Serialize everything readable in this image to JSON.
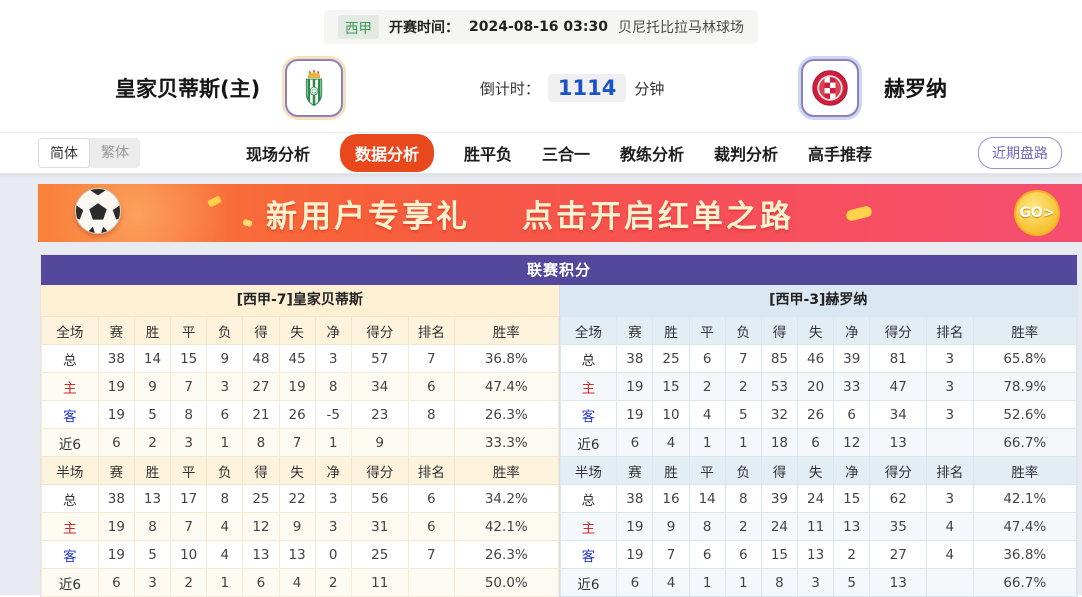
{
  "header": {
    "league": "西甲",
    "kickoff_label": "开赛时间：",
    "kickoff_time": "2024-08-16 03:30",
    "venue": "贝尼托比拉马林球场"
  },
  "teams": {
    "home_name": "皇家贝蒂斯(主)",
    "away_name": "赫罗纳"
  },
  "countdown": {
    "label": "倒计时：",
    "value": "1114",
    "unit": "分钟"
  },
  "lang": {
    "simplified": "简体",
    "traditional": "繁体"
  },
  "nav": {
    "items": [
      "现场分析",
      "数据分析",
      "胜平负",
      "三合一",
      "教练分析",
      "裁判分析",
      "高手推荐"
    ],
    "active_index": 1,
    "recent_button": "近期盘路"
  },
  "banner": {
    "text_left": "新用户专享礼",
    "text_right": "点击开启红单之路",
    "go_label": "GO>"
  },
  "standings": {
    "title": "联赛积分",
    "home": {
      "header": "[西甲-7]皇家贝蒂斯",
      "sections": [
        {
          "columns": [
            "全场",
            "赛",
            "胜",
            "平",
            "负",
            "得",
            "失",
            "净",
            "得分",
            "排名",
            "胜率"
          ],
          "rows": [
            {
              "label": "总",
              "values": [
                "38",
                "14",
                "15",
                "9",
                "48",
                "45",
                "3",
                "57",
                "7",
                "36.8%"
              ]
            },
            {
              "label": "主",
              "values": [
                "19",
                "9",
                "7",
                "3",
                "27",
                "19",
                "8",
                "34",
                "6",
                "47.4%"
              ]
            },
            {
              "label": "客",
              "values": [
                "19",
                "5",
                "8",
                "6",
                "21",
                "26",
                "-5",
                "23",
                "8",
                "26.3%"
              ]
            },
            {
              "label": "近6",
              "values": [
                "6",
                "2",
                "3",
                "1",
                "8",
                "7",
                "1",
                "9",
                "",
                "33.3%"
              ]
            }
          ]
        },
        {
          "columns": [
            "半场",
            "赛",
            "胜",
            "平",
            "负",
            "得",
            "失",
            "净",
            "得分",
            "排名",
            "胜率"
          ],
          "rows": [
            {
              "label": "总",
              "values": [
                "38",
                "13",
                "17",
                "8",
                "25",
                "22",
                "3",
                "56",
                "6",
                "34.2%"
              ]
            },
            {
              "label": "主",
              "values": [
                "19",
                "8",
                "7",
                "4",
                "12",
                "9",
                "3",
                "31",
                "6",
                "42.1%"
              ]
            },
            {
              "label": "客",
              "values": [
                "19",
                "5",
                "10",
                "4",
                "13",
                "13",
                "0",
                "25",
                "7",
                "26.3%"
              ]
            },
            {
              "label": "近6",
              "values": [
                "6",
                "3",
                "2",
                "1",
                "6",
                "4",
                "2",
                "11",
                "",
                "50.0%"
              ]
            }
          ]
        }
      ]
    },
    "away": {
      "header": "[西甲-3]赫罗纳",
      "sections": [
        {
          "columns": [
            "全场",
            "赛",
            "胜",
            "平",
            "负",
            "得",
            "失",
            "净",
            "得分",
            "排名",
            "胜率"
          ],
          "rows": [
            {
              "label": "总",
              "values": [
                "38",
                "25",
                "6",
                "7",
                "85",
                "46",
                "39",
                "81",
                "3",
                "65.8%"
              ]
            },
            {
              "label": "主",
              "values": [
                "19",
                "15",
                "2",
                "2",
                "53",
                "20",
                "33",
                "47",
                "3",
                "78.9%"
              ]
            },
            {
              "label": "客",
              "values": [
                "19",
                "10",
                "4",
                "5",
                "32",
                "26",
                "6",
                "34",
                "3",
                "52.6%"
              ]
            },
            {
              "label": "近6",
              "values": [
                "6",
                "4",
                "1",
                "1",
                "18",
                "6",
                "12",
                "13",
                "",
                "66.7%"
              ]
            }
          ]
        },
        {
          "columns": [
            "半场",
            "赛",
            "胜",
            "平",
            "负",
            "得",
            "失",
            "净",
            "得分",
            "排名",
            "胜率"
          ],
          "rows": [
            {
              "label": "总",
              "values": [
                "38",
                "16",
                "14",
                "8",
                "39",
                "24",
                "15",
                "62",
                "3",
                "42.1%"
              ]
            },
            {
              "label": "主",
              "values": [
                "19",
                "9",
                "8",
                "2",
                "24",
                "11",
                "13",
                "35",
                "4",
                "47.4%"
              ]
            },
            {
              "label": "客",
              "values": [
                "19",
                "7",
                "6",
                "6",
                "15",
                "13",
                "2",
                "27",
                "4",
                "36.8%"
              ]
            },
            {
              "label": "近6",
              "values": [
                "6",
                "4",
                "1",
                "1",
                "8",
                "3",
                "5",
                "13",
                "",
                "66.7%"
              ]
            }
          ]
        }
      ]
    }
  },
  "colors": {
    "accent_orange": "#e8481c",
    "title_purple": "#54489c",
    "home_header_bg": "#fdf0d3",
    "away_header_bg": "#dbe8f2",
    "home_row_red": "#d02a2a",
    "away_row_blue": "#2036c8",
    "countdown_blue": "#1b52c8",
    "league_green": "#3c9a55"
  }
}
